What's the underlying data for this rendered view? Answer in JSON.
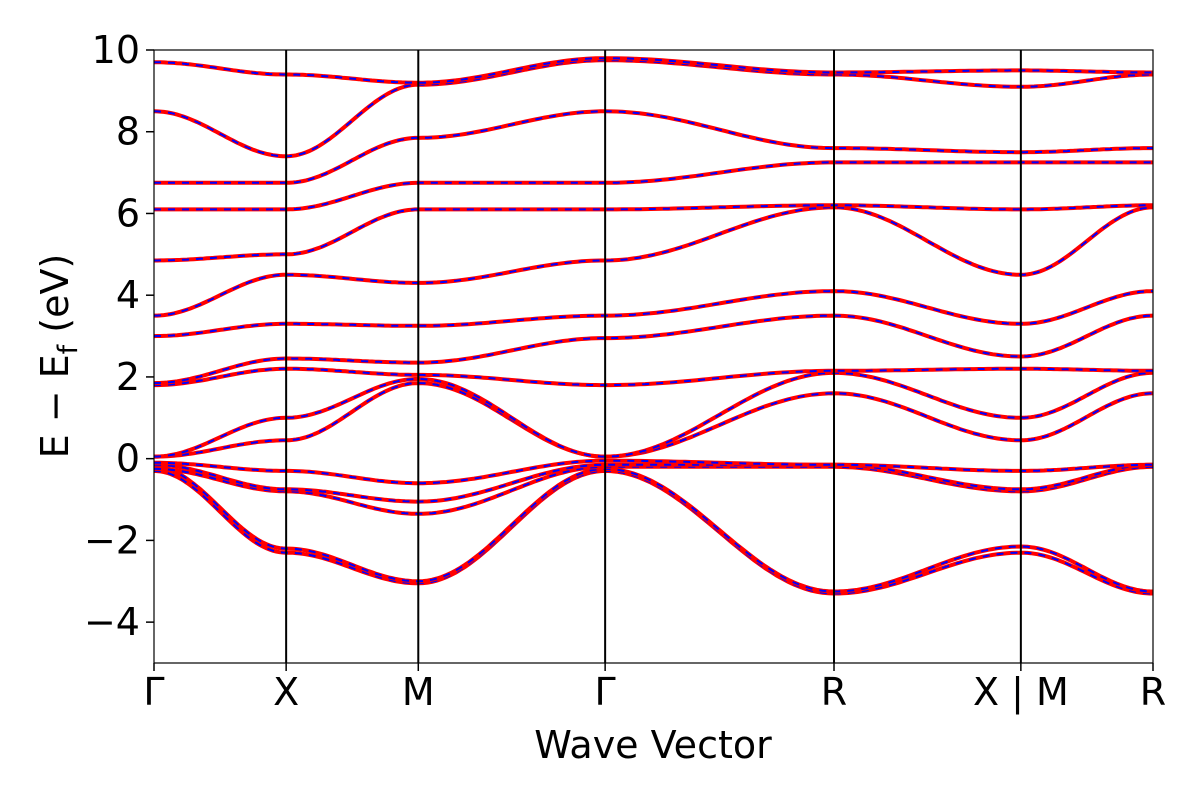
{
  "chart_data": {
    "type": "line",
    "title": "",
    "xlabel": "Wave Vector",
    "ylabel": "E − E",
    "ylabel_subscript": "f",
    "ylabel_unit": "(eV)",
    "ylim": [
      -5,
      10
    ],
    "yticks": [
      {
        "value": -4,
        "label": "−4"
      },
      {
        "value": -2,
        "label": "−2"
      },
      {
        "value": 0,
        "label": "0"
      },
      {
        "value": 2,
        "label": "2"
      },
      {
        "value": 4,
        "label": "4"
      },
      {
        "value": 6,
        "label": "6"
      },
      {
        "value": 8,
        "label": "8"
      },
      {
        "value": 10,
        "label": "10"
      }
    ],
    "kpath_distance": [
      0,
      0.5,
      1.0,
      1.707,
      2.573,
      3.28,
      3.78
    ],
    "kpoints": [
      {
        "label": "Γ",
        "k": 0
      },
      {
        "label": "X",
        "k": 0.5
      },
      {
        "label": "M",
        "k": 1.0
      },
      {
        "label": "Γ",
        "k": 1.707
      },
      {
        "label": "R",
        "k": 2.573
      },
      {
        "label": "X | M",
        "k": 3.28
      },
      {
        "label": "R",
        "k": 3.78
      }
    ],
    "grid": false,
    "series_style": [
      {
        "color": "#ff0000",
        "dash": "solid"
      },
      {
        "color": "#0000ff",
        "dash": "dashed"
      }
    ],
    "bands": [
      {
        "k": [
          0,
          0.5,
          1.0,
          1.707,
          2.573,
          3.28,
          3.78
        ],
        "E": [
          -0.3,
          -2.3,
          -3.05,
          -0.3,
          -3.3,
          -2.3,
          -3.3
        ]
      },
      {
        "k": [
          0,
          0.5,
          1.0,
          1.707,
          2.573,
          3.28,
          3.78
        ],
        "E": [
          -0.2,
          -2.2,
          -3.0,
          -0.25,
          -3.25,
          -2.15,
          -3.25
        ]
      },
      {
        "k": [
          0,
          0.5,
          1.0,
          1.707,
          2.573,
          3.28,
          3.78
        ],
        "E": [
          -0.25,
          -0.8,
          -1.35,
          -0.2,
          -0.2,
          -0.8,
          -0.2
        ]
      },
      {
        "k": [
          0,
          0.5,
          1.0,
          1.707,
          2.573,
          3.28,
          3.78
        ],
        "E": [
          -0.15,
          -0.75,
          -1.05,
          -0.15,
          -0.15,
          -0.75,
          -0.15
        ]
      },
      {
        "k": [
          0,
          0.5,
          1.0,
          1.707,
          2.573,
          3.28,
          3.78
        ],
        "E": [
          -0.1,
          -0.3,
          -0.6,
          -0.05,
          -0.15,
          -0.3,
          -0.15
        ]
      },
      {
        "k": [
          0,
          0.5,
          1.0,
          1.707,
          2.573,
          3.28,
          3.78
        ],
        "E": [
          0.05,
          0.45,
          1.85,
          0.05,
          1.6,
          0.45,
          1.6
        ]
      },
      {
        "k": [
          0,
          0.5,
          1.0,
          1.707,
          2.573,
          3.28,
          3.78
        ],
        "E": [
          0.05,
          1.0,
          1.95,
          0.05,
          2.1,
          1.0,
          2.1
        ]
      },
      {
        "k": [
          0,
          0.5,
          1.0,
          1.707,
          2.573,
          3.28,
          3.78
        ],
        "E": [
          1.8,
          2.2,
          2.05,
          1.8,
          2.15,
          2.2,
          2.15
        ]
      },
      {
        "k": [
          0,
          0.5,
          1.0,
          1.707,
          2.573,
          3.28,
          3.78
        ],
        "E": [
          1.85,
          2.45,
          2.35,
          2.95,
          3.5,
          2.5,
          3.5
        ]
      },
      {
        "k": [
          0,
          0.5,
          1.0,
          1.707,
          2.573,
          3.28,
          3.78
        ],
        "E": [
          3.0,
          3.3,
          3.25,
          3.5,
          4.1,
          3.3,
          4.1
        ]
      },
      {
        "k": [
          0,
          0.5,
          1.0,
          1.707,
          2.573,
          3.28,
          3.78
        ],
        "E": [
          3.5,
          4.5,
          4.3,
          4.85,
          6.15,
          4.5,
          6.15
        ]
      },
      {
        "k": [
          0,
          0.5,
          1.0,
          1.707,
          2.573,
          3.28,
          3.78
        ],
        "E": [
          4.85,
          5.0,
          6.1,
          6.1,
          6.2,
          6.1,
          6.2
        ]
      },
      {
        "k": [
          0,
          0.5,
          1.0,
          1.707,
          2.573,
          3.28,
          3.78
        ],
        "E": [
          6.1,
          6.1,
          6.75,
          6.75,
          7.25,
          7.25,
          7.25
        ]
      },
      {
        "k": [
          0,
          0.5,
          1.0,
          1.707,
          2.573,
          3.28,
          3.78
        ],
        "E": [
          6.75,
          6.75,
          7.85,
          8.5,
          7.6,
          7.5,
          7.6
        ]
      },
      {
        "k": [
          0,
          0.5,
          1.0,
          1.707,
          2.573,
          3.28,
          3.78
        ],
        "E": [
          8.5,
          7.4,
          9.15,
          9.75,
          9.4,
          9.1,
          9.4
        ]
      },
      {
        "k": [
          0,
          0.5,
          1.0,
          1.707,
          2.573,
          3.28,
          3.78
        ],
        "E": [
          9.7,
          9.4,
          9.2,
          9.8,
          9.45,
          9.5,
          9.45
        ]
      }
    ]
  }
}
